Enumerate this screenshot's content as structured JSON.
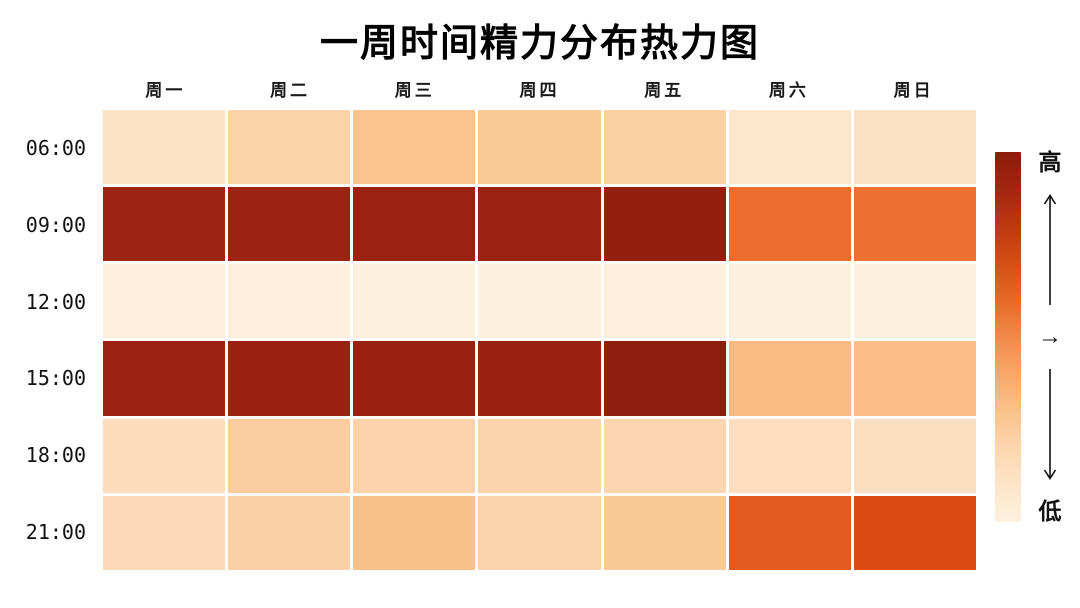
{
  "title": "一周时间精力分布热力图",
  "legend": {
    "high": "高",
    "low": "低",
    "mid_arrow": "→"
  },
  "colors": {
    "background": "#FFFFFF",
    "grid_gap": "#FFFFFF",
    "title_text": "#000000",
    "axis_label_text": "#1A1A1A",
    "arrow_stroke": "#111111"
  },
  "chart_data": {
    "type": "heatmap",
    "title": "一周时间精力分布热力图",
    "x_categories": [
      "周一",
      "周二",
      "周三",
      "周四",
      "周五",
      "周六",
      "周日"
    ],
    "y_categories": [
      "06:00",
      "09:00",
      "12:00",
      "15:00",
      "18:00",
      "21:00"
    ],
    "value_scale": {
      "low_label": "低",
      "high_label": "高",
      "range": [
        0,
        100
      ],
      "note": "no numeric cell labels shown; values estimated from color intensity"
    },
    "values": [
      [
        22,
        33,
        42,
        39,
        34,
        18,
        23
      ],
      [
        95,
        96,
        97,
        96,
        98,
        69,
        68
      ],
      [
        6,
        6,
        5,
        5,
        6,
        5,
        5
      ],
      [
        96,
        97,
        97,
        97,
        98,
        46,
        45
      ],
      [
        26,
        36,
        32,
        31,
        30,
        25,
        24
      ],
      [
        28,
        35,
        44,
        32,
        38,
        77,
        82
      ]
    ],
    "cell_colors": [
      [
        "#FCE3C6",
        "#FBD3A8",
        "#FAC48E",
        "#FAC997",
        "#FBD0A3",
        "#FDE6CC",
        "#FCE2C4"
      ],
      [
        "#9E2413",
        "#9C2312",
        "#9A2211",
        "#9B2211",
        "#951F0E",
        "#EC6D2D",
        "#EC7030"
      ],
      [
        "#FDEFDB",
        "#FDEFDB",
        "#FDF0DC",
        "#FDF0DC",
        "#FDEFDB",
        "#FDF0DE",
        "#FDF0DE"
      ],
      [
        "#9B2212",
        "#9A2112",
        "#982011",
        "#992112",
        "#901E0E",
        "#FABB83",
        "#FABD85"
      ],
      [
        "#FCDCBB",
        "#FACCA0",
        "#FBD2A9",
        "#FBD3AB",
        "#FBD5AF",
        "#FCDDBE",
        "#FCDEC0"
      ],
      [
        "#FCDAB8",
        "#FBD0A5",
        "#F9C28B",
        "#FBD3AC",
        "#FAC897",
        "#E45A20",
        "#D94B13"
      ]
    ],
    "colorbar": {
      "orientation": "vertical",
      "high_label": "高",
      "low_label": "低",
      "gradient_top_to_bottom": [
        "#8C1C08",
        "#A32511",
        "#BE3811",
        "#D54E16",
        "#E66A25",
        "#F2894B",
        "#F9A869",
        "#FBC28A",
        "#FCD6AE",
        "#FDE5C9",
        "#FEF1DE"
      ]
    },
    "legend_position": "right",
    "grid": "white 3px gaps between cells"
  }
}
